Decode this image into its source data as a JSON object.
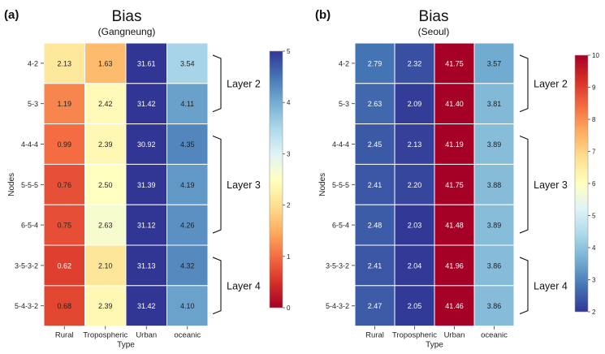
{
  "chart_data": [
    {
      "type": "heatmap",
      "panel_label": "(a)",
      "title": "Bias",
      "subtitle": "(Gangneung)",
      "xlabel": "Type",
      "ylabel": "Nodes",
      "categories": [
        "Rural",
        "Tropospheric",
        "Urban",
        "oceanic"
      ],
      "rows": [
        "4-2",
        "5-3",
        "4-4-4",
        "5-5-5",
        "6-5-4",
        "3-5-3-2",
        "5-4-3-2"
      ],
      "values": [
        [
          2.13,
          1.63,
          31.61,
          3.54
        ],
        [
          1.19,
          2.42,
          31.42,
          4.11
        ],
        [
          0.99,
          2.39,
          30.92,
          4.35
        ],
        [
          0.76,
          2.5,
          31.39,
          4.19
        ],
        [
          0.75,
          2.63,
          31.12,
          4.26
        ],
        [
          0.62,
          2.1,
          31.13,
          4.32
        ],
        [
          0.68,
          2.39,
          31.42,
          4.1
        ]
      ],
      "labels": [
        [
          "2.13",
          "1.63",
          "31.61",
          "3.54"
        ],
        [
          "1.19",
          "2.42",
          "31.42",
          "4.11"
        ],
        [
          "0.99",
          "2.39",
          "30.92",
          "4.35"
        ],
        [
          "0.76",
          "2.50",
          "31.39",
          "4.19"
        ],
        [
          "0.75",
          "2.63",
          "31.12",
          "4.26"
        ],
        [
          "0.62",
          "2.10",
          "31.13",
          "4.32"
        ],
        [
          "0.68",
          "2.39",
          "31.42",
          "4.10"
        ]
      ],
      "colorbar": {
        "min": 0,
        "max": 5,
        "ticks": [
          "0",
          "1",
          "2",
          "3",
          "4",
          "5"
        ],
        "colormap": "RdYlBu"
      },
      "groups": [
        {
          "label": "Layer 2",
          "from": "4-2",
          "to": "5-3"
        },
        {
          "label": "Layer 3",
          "from": "4-4-4",
          "to": "6-5-4"
        },
        {
          "label": "Layer 4",
          "from": "3-5-3-2",
          "to": "5-4-3-2"
        }
      ]
    },
    {
      "type": "heatmap",
      "panel_label": "(b)",
      "title": "Bias",
      "subtitle": "(Seoul)",
      "xlabel": "Type",
      "ylabel": "Nodes",
      "categories": [
        "Rural",
        "Tropospheric",
        "Urban",
        "oceanic"
      ],
      "rows": [
        "4-2",
        "5-3",
        "4-4-4",
        "5-5-5",
        "6-5-4",
        "3-5-3-2",
        "5-4-3-2"
      ],
      "values": [
        [
          2.79,
          2.32,
          41.75,
          3.57
        ],
        [
          2.63,
          2.09,
          41.4,
          3.81
        ],
        [
          2.45,
          2.13,
          41.19,
          3.89
        ],
        [
          2.41,
          2.2,
          41.75,
          3.88
        ],
        [
          2.48,
          2.03,
          41.48,
          3.89
        ],
        [
          2.41,
          2.04,
          41.96,
          3.86
        ],
        [
          2.47,
          2.05,
          41.46,
          3.86
        ]
      ],
      "labels": [
        [
          "2.79",
          "2.32",
          "41.75",
          "3.57"
        ],
        [
          "2.63",
          "2.09",
          "41.40",
          "3.81"
        ],
        [
          "2.45",
          "2.13",
          "41.19",
          "3.89"
        ],
        [
          "2.41",
          "2.20",
          "41.75",
          "3.88"
        ],
        [
          "2.48",
          "2.03",
          "41.48",
          "3.89"
        ],
        [
          "2.41",
          "2.04",
          "41.96",
          "3.86"
        ],
        [
          "2.47",
          "2.05",
          "41.46",
          "3.86"
        ]
      ],
      "colorbar": {
        "min": 2,
        "max": 10,
        "ticks": [
          "2",
          "3",
          "4",
          "5",
          "6",
          "7",
          "8",
          "9",
          "10"
        ],
        "colormap": "RdYlBu_r"
      },
      "groups": [
        {
          "label": "Layer 2",
          "from": "4-2",
          "to": "5-3"
        },
        {
          "label": "Layer 3",
          "from": "4-4-4",
          "to": "6-5-4"
        },
        {
          "label": "Layer 4",
          "from": "3-5-3-2",
          "to": "5-4-3-2"
        }
      ]
    }
  ]
}
